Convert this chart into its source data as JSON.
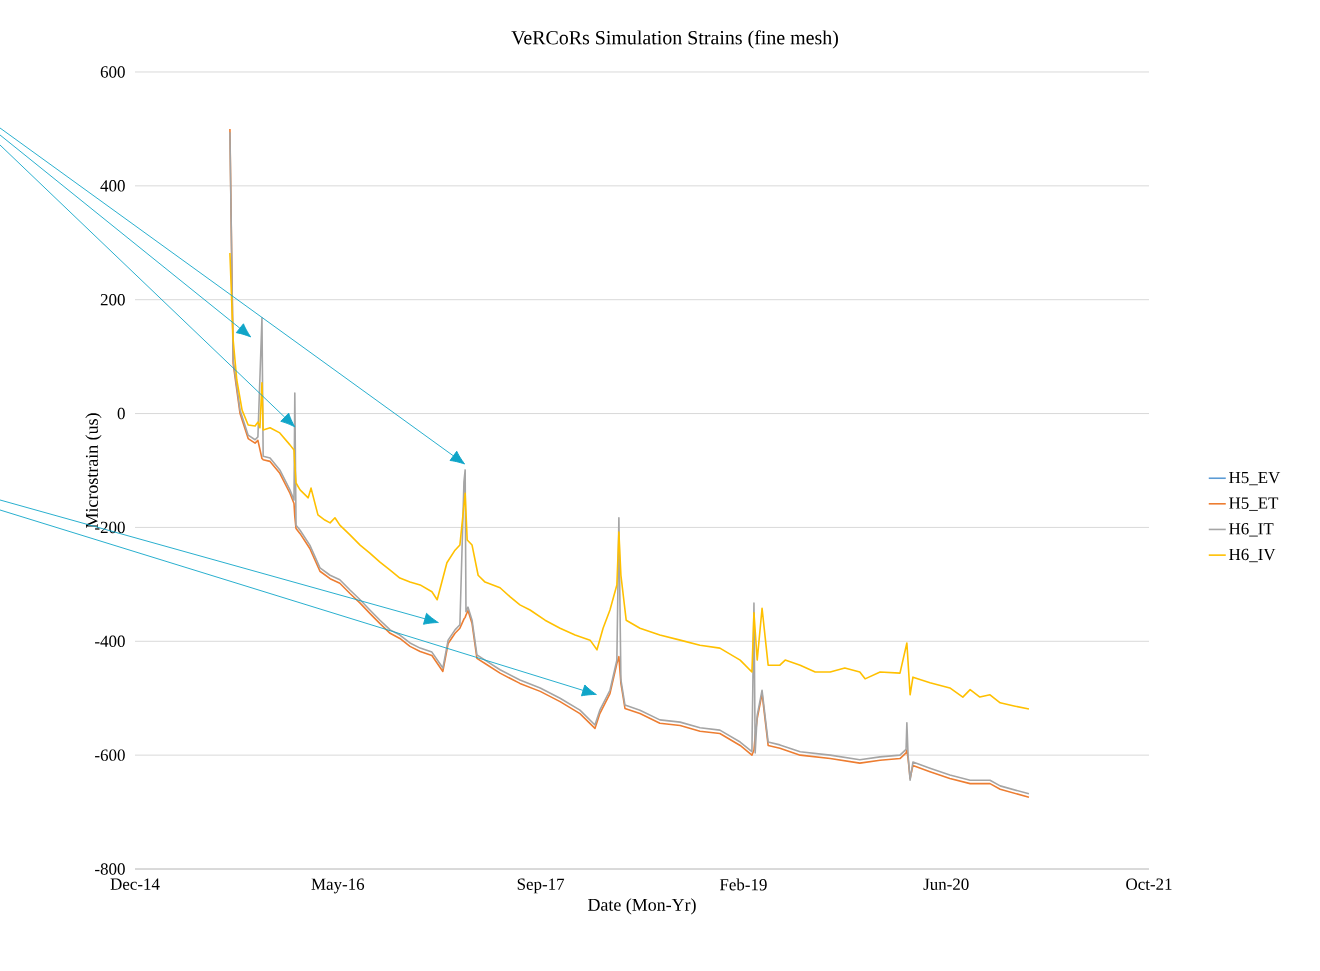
{
  "chart_data": {
    "type": "line",
    "title": "VeRCoRs Simulation  Strains (fine mesh)",
    "xlabel": "Date (Mon-Yr)",
    "ylabel": "Microstrain (us)",
    "xlim": [
      "2014-12-25",
      "2021-10-29"
    ],
    "xticks": [
      {
        "value": "2014-12-25",
        "label": "Dec-14"
      },
      {
        "value": "2016-05-08",
        "label": "May-16"
      },
      {
        "value": "2017-09-20",
        "label": "Sep-17"
      },
      {
        "value": "2019-02-02",
        "label": "Feb-19"
      },
      {
        "value": "2020-06-16",
        "label": "Jun-20"
      },
      {
        "value": "2021-10-29",
        "label": "Oct-21"
      }
    ],
    "ylim": [
      -800,
      600
    ],
    "yticks": [
      -800,
      -600,
      -400,
      -200,
      0,
      200,
      400,
      600
    ],
    "grid": "y",
    "legend": "right",
    "x": [
      "2015-08-16",
      "2015-08-24",
      "2015-09-10",
      "2015-09-30",
      "2015-10-17",
      "2015-10-24",
      "2015-11-03",
      "2015-11-06",
      "2015-11-23",
      "2015-12-17",
      "2016-01-11",
      "2016-01-21",
      "2016-01-23",
      "2016-01-26",
      "2016-02-05",
      "2016-02-29",
      "2016-03-25",
      "2016-04-19",
      "2016-05-13",
      "2016-06-07",
      "2016-07-02",
      "2016-07-26",
      "2016-08-20",
      "2016-09-14",
      "2016-10-08",
      "2016-11-02",
      "2016-11-27",
      "2016-12-26",
      "2017-01-22",
      "2017-02-04",
      "2017-02-21",
      "2017-03-05",
      "2017-03-15",
      "2017-03-18",
      "2017-03-20",
      "2017-03-25",
      "2017-04-04",
      "2017-04-16",
      "2017-05-06",
      "2017-06-12",
      "2017-07-31",
      "2017-09-19",
      "2017-11-07",
      "2017-12-26",
      "2018-02-01",
      "2018-02-13",
      "2018-03-10",
      "2018-03-27",
      "2018-04-01",
      "2018-04-06",
      "2018-04-16",
      "2018-05-23",
      "2018-07-11",
      "2018-08-30",
      "2018-10-18",
      "2018-12-06",
      "2019-01-25",
      "2019-02-23",
      "2019-02-28",
      "2019-03-03",
      "2019-03-08",
      "2019-03-20",
      "2019-04-04",
      "2019-05-03",
      "2019-06-22",
      "2019-09-04",
      "2019-11-16",
      "2020-01-05",
      "2020-02-23",
      "2020-03-09",
      "2020-03-11",
      "2020-03-14",
      "2020-03-19",
      "2020-03-26",
      "2020-05-07",
      "2020-06-25",
      "2020-08-14",
      "2020-10-02",
      "2020-10-27",
      "2021-01-06"
    ],
    "series": [
      {
        "name": "H5_EV",
        "color": "#5b9bd5",
        "values": [
          null,
          null,
          null,
          null,
          null,
          null,
          null,
          null,
          null,
          null,
          null,
          null,
          null,
          null,
          null,
          null,
          null,
          null,
          null,
          null,
          null,
          null,
          null,
          null,
          null,
          null,
          null,
          null,
          null,
          null,
          null,
          null,
          null,
          null,
          null,
          null,
          null,
          null,
          null,
          null,
          null,
          null,
          null,
          null,
          null,
          null,
          null,
          null,
          null,
          null,
          null,
          null,
          null,
          null,
          null,
          null,
          null,
          null,
          null,
          null,
          null,
          null,
          null,
          null,
          null,
          null,
          null,
          null,
          null,
          null,
          null,
          null,
          null,
          null,
          null,
          null,
          null,
          null,
          null,
          null
        ]
      },
      {
        "name": "H5_ET",
        "color": "#ed7d31",
        "values": [
          500,
          88,
          0,
          -44,
          -52,
          -47,
          -79,
          -81,
          -84,
          -105,
          -140,
          -158,
          -181,
          -202,
          -211,
          -237,
          -277,
          -290,
          -298,
          -316,
          -333,
          -351,
          -369,
          -386,
          -395,
          -409,
          -418,
          -425,
          -453,
          -404,
          -386,
          -377,
          -361,
          -358,
          -354,
          -346,
          -369,
          -430,
          -439,
          -456,
          -474,
          -488,
          -506,
          -527,
          -553,
          -527,
          -492,
          -439,
          -427,
          -474,
          -518,
          -527,
          -544,
          -548,
          -558,
          -562,
          -583,
          -600,
          -591,
          -566,
          -536,
          -492,
          -583,
          -588,
          -600,
          -606,
          -614,
          -609,
          -606,
          -596,
          -591,
          -606,
          -641,
          -618,
          -629,
          -641,
          -650,
          -650,
          -660,
          -674
        ]
      },
      {
        "name": "H6_IT",
        "color": "#a5a5a5",
        "values": [
          494,
          94,
          6,
          -38,
          -46,
          -41,
          168,
          -75,
          -78,
          -99,
          -134,
          -152,
          36,
          -196,
          -205,
          -231,
          -271,
          -284,
          -292,
          -310,
          -327,
          -345,
          -363,
          -380,
          -389,
          -403,
          -412,
          -419,
          -447,
          -398,
          -380,
          -371,
          -120,
          -99,
          -348,
          -340,
          -363,
          -424,
          -433,
          -450,
          -468,
          -482,
          -500,
          -521,
          -547,
          -521,
          -486,
          -433,
          -183,
          -468,
          -512,
          -521,
          -538,
          -542,
          -552,
          -556,
          -577,
          -594,
          -333,
          -596,
          -530,
          -486,
          -577,
          -582,
          -594,
          -600,
          -608,
          -603,
          -600,
          -590,
          -543,
          -600,
          -644,
          -612,
          -623,
          -635,
          -644,
          -644,
          -654,
          -668
        ]
      },
      {
        "name": "H6_IV",
        "color": "#ffc000",
        "x": [
          "2015-08-16",
          "2015-08-24",
          "2015-09-02",
          "2015-09-15",
          "2015-09-30",
          "2015-10-17",
          "2015-10-24",
          "2015-10-29",
          "2015-11-03",
          "2015-11-06",
          "2015-11-23",
          "2015-12-17",
          "2016-01-11",
          "2016-01-21",
          "2016-01-23",
          "2016-01-26",
          "2016-02-05",
          "2016-02-25",
          "2016-03-03",
          "2016-03-20",
          "2016-04-06",
          "2016-04-19",
          "2016-05-01",
          "2016-05-13",
          "2016-06-07",
          "2016-07-02",
          "2016-07-26",
          "2016-08-20",
          "2016-09-14",
          "2016-10-08",
          "2016-11-02",
          "2016-11-27",
          "2016-12-26",
          "2017-01-08",
          "2017-02-01",
          "2017-02-21",
          "2017-03-05",
          "2017-03-18",
          "2017-03-23",
          "2017-04-04",
          "2017-04-19",
          "2017-05-06",
          "2017-06-12",
          "2017-07-07",
          "2017-07-31",
          "2017-08-25",
          "2017-10-01",
          "2017-11-07",
          "2017-12-14",
          "2018-01-20",
          "2018-02-06",
          "2018-02-21",
          "2018-03-10",
          "2018-03-27",
          "2018-04-01",
          "2018-04-06",
          "2018-04-19",
          "2018-05-23",
          "2018-07-11",
          "2018-08-30",
          "2018-10-18",
          "2018-12-06",
          "2019-01-25",
          "2019-02-23",
          "2019-02-28",
          "2019-03-08",
          "2019-03-20",
          "2019-04-04",
          "2019-05-03",
          "2019-05-16",
          "2019-06-22",
          "2019-07-29",
          "2019-09-04",
          "2019-10-10",
          "2019-11-16",
          "2019-11-29",
          "2020-01-05",
          "2020-02-23",
          "2020-03-11",
          "2020-03-19",
          "2020-03-26",
          "2020-05-07",
          "2020-06-25",
          "2020-07-27",
          "2020-08-14",
          "2020-09-07",
          "2020-10-02",
          "2020-10-27",
          "2020-12-03",
          "2021-01-06"
        ],
        "values": [
          282,
          129,
          59,
          6,
          -20,
          -22,
          -15,
          -25,
          54,
          -29,
          -25,
          -34,
          -55,
          -64,
          -90,
          -122,
          -134,
          -148,
          -131,
          -178,
          -187,
          -192,
          -183,
          -196,
          -213,
          -231,
          -245,
          -261,
          -275,
          -289,
          -296,
          -301,
          -313,
          -327,
          -262,
          -240,
          -231,
          -140,
          -222,
          -231,
          -284,
          -296,
          -306,
          -322,
          -336,
          -345,
          -363,
          -377,
          -389,
          -398,
          -415,
          -377,
          -345,
          -301,
          -208,
          -284,
          -363,
          -377,
          -389,
          -398,
          -407,
          -412,
          -433,
          -454,
          -350,
          -433,
          -342,
          -442,
          -442,
          -433,
          -442,
          -454,
          -454,
          -447,
          -454,
          -466,
          -454,
          -456,
          -403,
          -494,
          -463,
          -473,
          -482,
          -498,
          -485,
          -498,
          -494,
          -508,
          -514,
          -519
        ]
      }
    ]
  }
}
